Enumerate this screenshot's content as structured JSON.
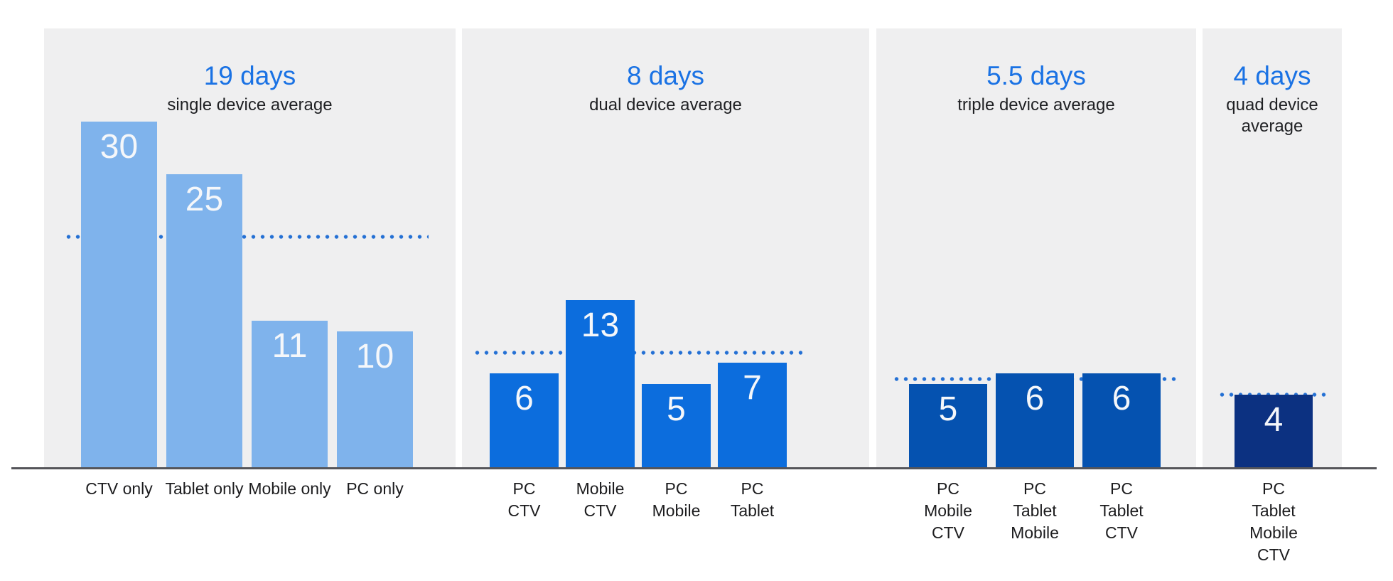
{
  "chart_data": {
    "type": "bar",
    "title": "",
    "unit": "days",
    "ylim": [
      0,
      40
    ],
    "layout_hints": {
      "grid": false,
      "legend": "none",
      "average_line_style": "dotted",
      "panel_background": "#efeff0",
      "axis_color": "#55555a",
      "headline_color": "#1a72e4",
      "average_line_color": "#2470d4",
      "value_label_color": "#f5f7fa",
      "category_label_color": "#1c1c1e"
    },
    "panels": [
      {
        "headline": "19 days",
        "subtitle": "single device average",
        "average_days": 19,
        "bar_color": "#7fb3ec",
        "categories": [
          "CTV only",
          "Tablet only",
          "Mobile only",
          "PC only"
        ],
        "values": [
          30,
          25,
          11,
          10
        ]
      },
      {
        "headline": "8 days",
        "subtitle": "dual device average",
        "average_days": 8,
        "bar_color": "#0c6ddd",
        "categories": [
          "PC\nCTV",
          "Mobile\nCTV",
          "PC\nMobile",
          "PC\nTablet"
        ],
        "values": [
          6,
          13,
          5,
          7
        ]
      },
      {
        "headline": "5.5 days",
        "subtitle": "triple device average",
        "average_days": 5.5,
        "bar_color": "#0552b0",
        "categories": [
          "PC\nMobile\nCTV",
          "PC\nTablet\nMobile",
          "PC\nTablet\nCTV"
        ],
        "values": [
          5,
          6,
          6
        ]
      },
      {
        "headline": "4 days",
        "subtitle": "quad device average",
        "average_days": 4,
        "bar_color": "#0c3181",
        "categories": [
          "PC\nTablet\nMobile\nCTV"
        ],
        "values": [
          4
        ]
      }
    ]
  }
}
